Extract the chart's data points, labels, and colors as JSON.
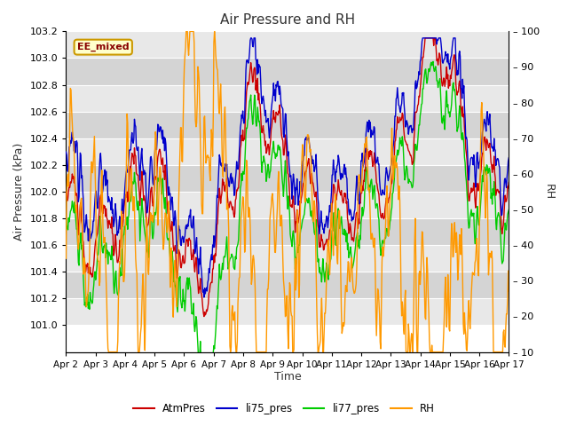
{
  "title": "Air Pressure and RH",
  "xlabel": "Time",
  "ylabel_left": "Air Pressure (kPa)",
  "ylabel_right": "RH",
  "annotation": "EE_mixed",
  "ylim_left": [
    100.8,
    103.2
  ],
  "ylim_right": [
    10,
    100
  ],
  "x_labels": [
    "Apr 2",
    "Apr 3",
    "Apr 4",
    "Apr 5",
    "Apr 6",
    "Apr 7",
    "Apr 8",
    "Apr 9",
    "Apr 10",
    "Apr 11",
    "Apr 12",
    "Apr 13",
    "Apr 14",
    "Apr 15",
    "Apr 16",
    "Apr 17"
  ],
  "line_colors": {
    "AtmPres": "#cc0000",
    "li75_pres": "#0000cc",
    "li77_pres": "#00cc00",
    "RH": "#ff9900"
  },
  "legend_entries": [
    "AtmPres",
    "li75_pres",
    "li77_pres",
    "RH"
  ],
  "background_color": "#ffffff",
  "band_colors": [
    "#e8e8e8",
    "#d4d4d4"
  ],
  "grid_line_color": "#cccccc",
  "annotation_bg": "#ffffcc",
  "annotation_border": "#cc9900",
  "yticks_left": [
    101.0,
    101.2,
    101.4,
    101.6,
    101.8,
    102.0,
    102.2,
    102.4,
    102.6,
    102.8,
    103.0,
    103.2
  ],
  "yticks_right": [
    10,
    20,
    30,
    40,
    50,
    60,
    70,
    80,
    90,
    100
  ]
}
